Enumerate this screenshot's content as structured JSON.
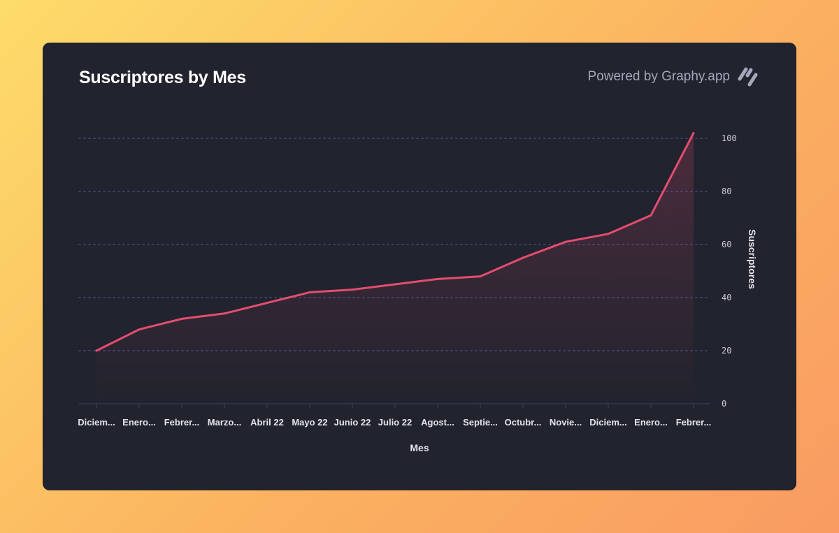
{
  "header": {
    "title": "Suscriptores by Mes",
    "powered_by": "Powered by Graphy.app",
    "logo_icon": "graphy-slashes-icon"
  },
  "colors": {
    "line": "#e44d6f",
    "grid": "#3a3d6a",
    "card": "#21232e"
  },
  "chart_data": {
    "type": "area",
    "title": "Suscriptores by Mes",
    "xlabel": "Mes",
    "ylabel": "Suscriptores",
    "ylim": [
      0,
      100
    ],
    "yticks": [
      0,
      20,
      40,
      60,
      80,
      100
    ],
    "grid": true,
    "y_axis_position": "right",
    "categories": [
      "Diciem...",
      "Enero...",
      "Febrer...",
      "Marzo...",
      "Abril 22",
      "Mayo 22",
      "Junio 22",
      "Julio 22",
      "Agost...",
      "Septie...",
      "Octubr...",
      "Novie...",
      "Diciem...",
      "Enero...",
      "Febrer..."
    ],
    "series": [
      {
        "values": [
          20,
          28,
          32,
          34,
          38,
          42,
          43,
          45,
          47,
          48,
          55,
          61,
          64,
          71,
          102
        ]
      }
    ]
  }
}
